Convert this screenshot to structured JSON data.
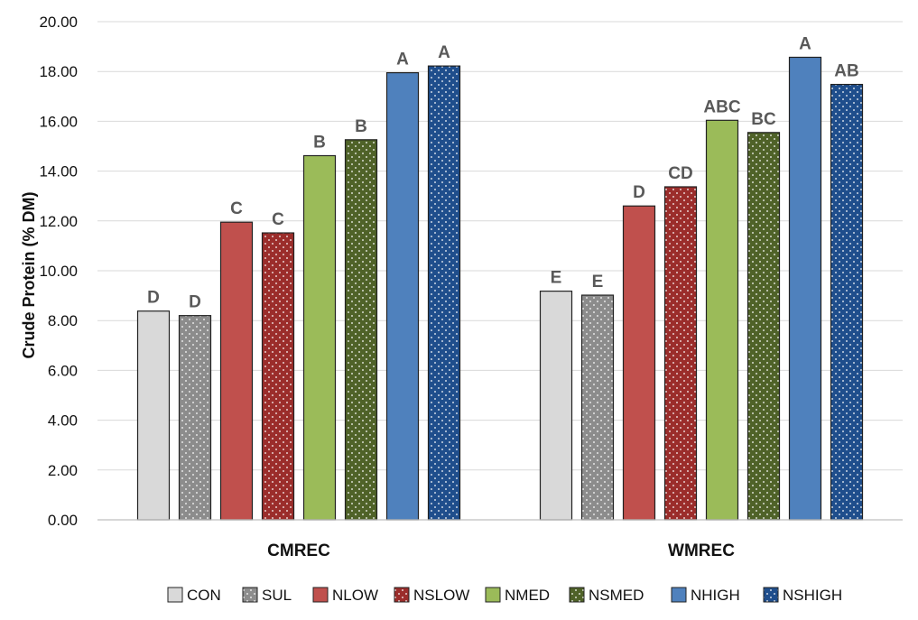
{
  "chart_data": {
    "type": "bar",
    "ylabel": "Crude Protein (% DM)",
    "ylim": [
      0,
      20
    ],
    "yticks": [
      "0.00",
      "2.00",
      "4.00",
      "6.00",
      "8.00",
      "10.00",
      "12.00",
      "14.00",
      "16.00",
      "18.00",
      "20.00"
    ],
    "grid": true,
    "legend_position": "bottom",
    "categories": [
      "CMREC",
      "WMREC"
    ],
    "series": [
      {
        "name": "CON",
        "color": "#d9d9d9",
        "pattern": "solid",
        "values": [
          8.38,
          9.18
        ],
        "labels": [
          "D",
          "E"
        ]
      },
      {
        "name": "SUL",
        "color": "#8c8c8c",
        "pattern": "dots",
        "values": [
          8.2,
          9.02
        ],
        "labels": [
          "D",
          "E"
        ]
      },
      {
        "name": "NLOW",
        "color": "#c0504d",
        "pattern": "solid",
        "values": [
          11.95,
          12.6
        ],
        "labels": [
          "C",
          "D"
        ]
      },
      {
        "name": "NSLOW",
        "color": "#9b2d2b",
        "pattern": "dots",
        "values": [
          11.52,
          13.37
        ],
        "labels": [
          "C",
          "CD"
        ]
      },
      {
        "name": "NMED",
        "color": "#9bbb59",
        "pattern": "solid",
        "values": [
          14.62,
          16.04
        ],
        "labels": [
          "B",
          "ABC"
        ]
      },
      {
        "name": "NSMED",
        "color": "#4f6228",
        "pattern": "dots",
        "values": [
          15.26,
          15.55
        ],
        "labels": [
          "B",
          "BC"
        ]
      },
      {
        "name": "NHIGH",
        "color": "#4f81bd",
        "pattern": "solid",
        "values": [
          17.95,
          18.57
        ],
        "labels": [
          "A",
          "A"
        ]
      },
      {
        "name": "NSHIGH",
        "color": "#1f4e8c",
        "pattern": "dots",
        "values": [
          18.22,
          17.48
        ],
        "labels": [
          "A",
          "AB"
        ]
      }
    ]
  }
}
